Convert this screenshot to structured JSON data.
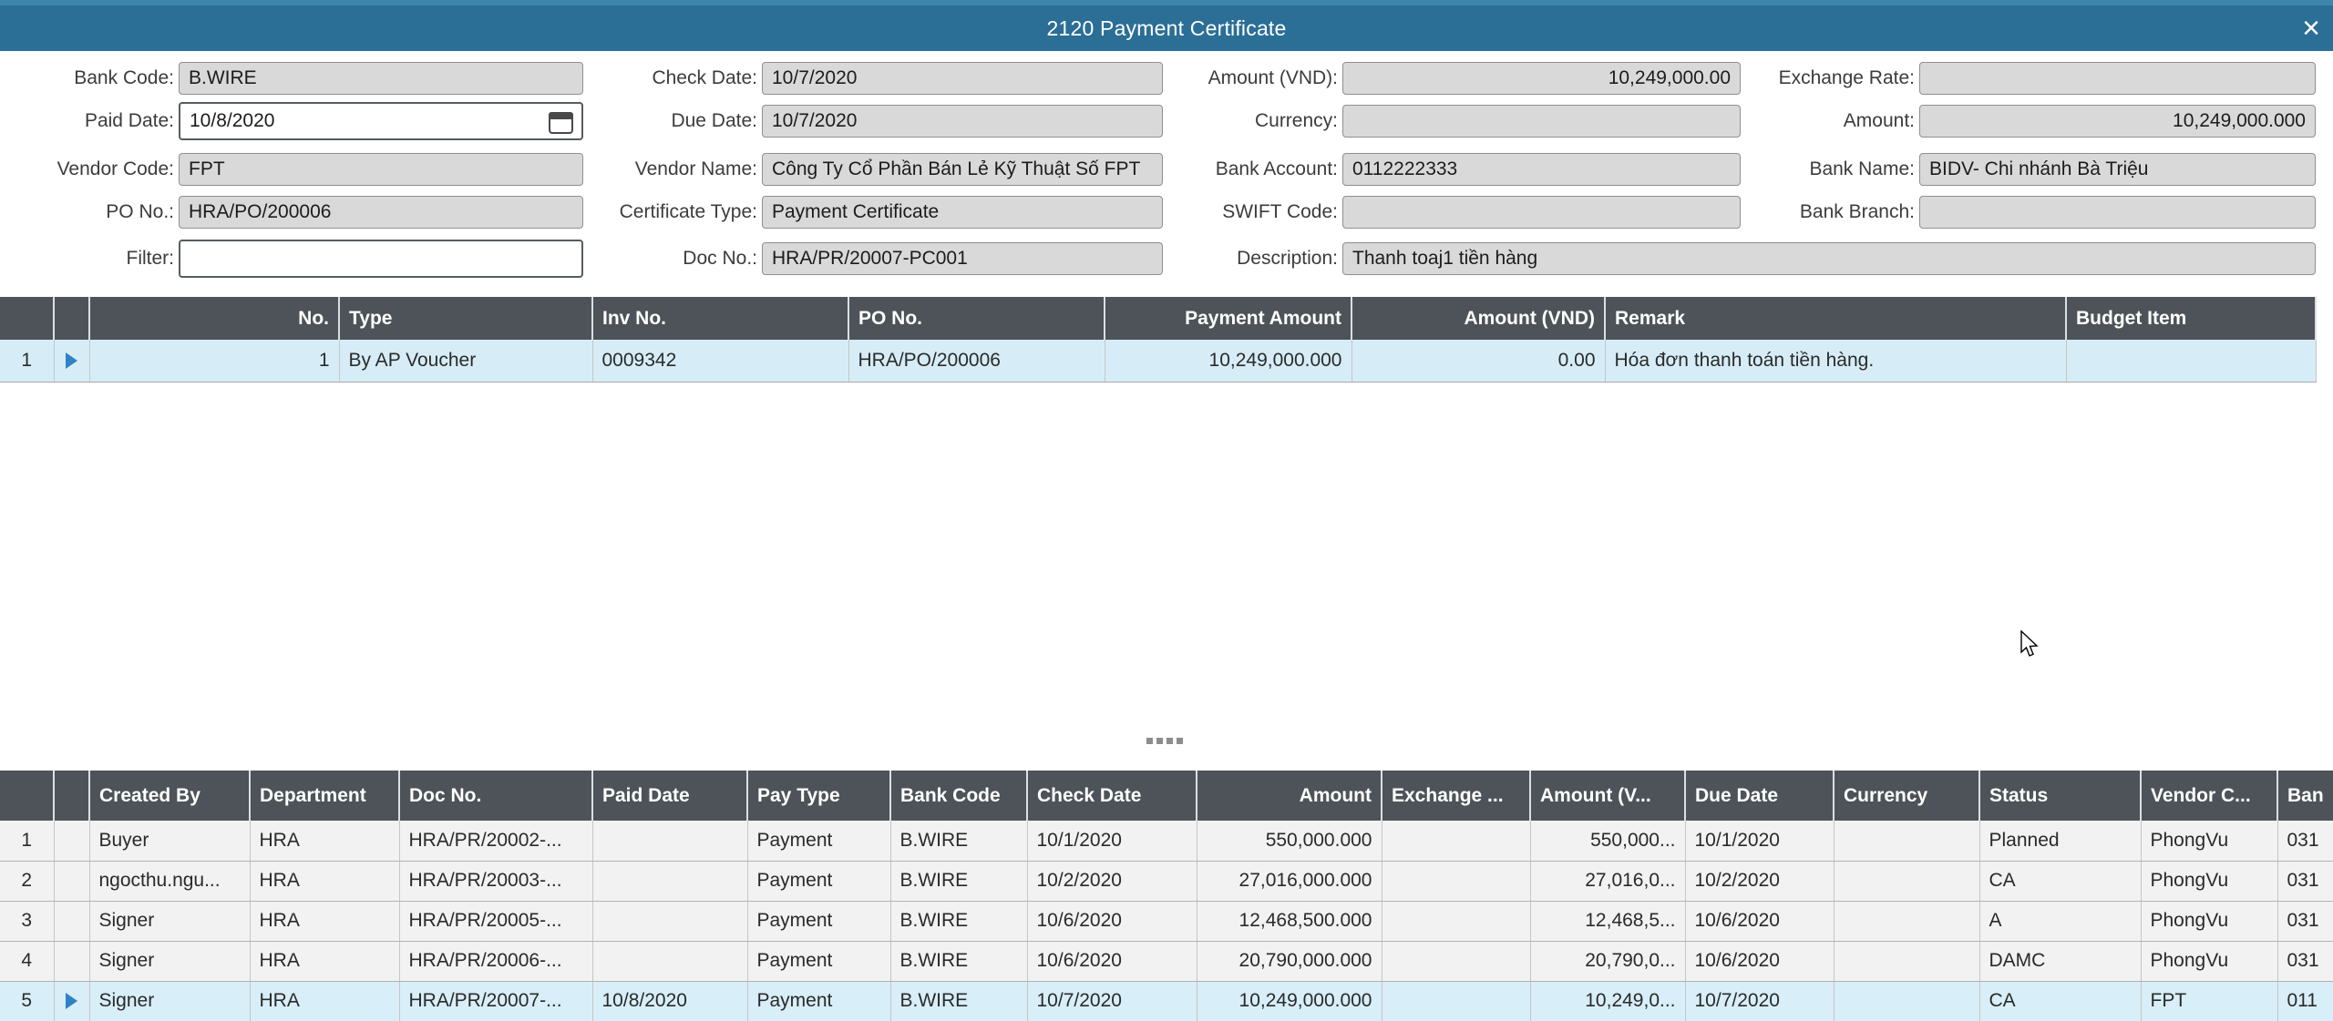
{
  "titlebar": {
    "title": "2120 Payment Certificate",
    "close": "×"
  },
  "form": {
    "bank_code": {
      "label": "Bank Code:",
      "value": "B.WIRE"
    },
    "check_date": {
      "label": "Check Date:",
      "value": "10/7/2020"
    },
    "amount_vnd": {
      "label": "Amount (VND):",
      "value": "10,249,000.00"
    },
    "exchange_rate": {
      "label": "Exchange Rate:",
      "value": ""
    },
    "paid_date": {
      "label": "Paid Date:",
      "value": "10/8/2020"
    },
    "due_date": {
      "label": "Due Date:",
      "value": "10/7/2020"
    },
    "currency": {
      "label": "Currency:",
      "value": ""
    },
    "amount": {
      "label": "Amount:",
      "value": "10,249,000.000"
    },
    "vendor_code": {
      "label": "Vendor Code:",
      "value": "FPT"
    },
    "vendor_name": {
      "label": "Vendor Name:",
      "value": "Công Ty Cổ Phần Bán Lẻ Kỹ Thuật Số FPT"
    },
    "bank_account": {
      "label": "Bank Account:",
      "value": "0112222333"
    },
    "bank_name": {
      "label": "Bank Name:",
      "value": "BIDV- Chi nhánh Bà Triệu"
    },
    "po_no": {
      "label": "PO No.:",
      "value": "HRA/PO/200006"
    },
    "certificate_type": {
      "label": "Certificate Type:",
      "value": "Payment Certificate"
    },
    "swift_code": {
      "label": "SWIFT Code:",
      "value": ""
    },
    "bank_branch": {
      "label": "Bank Branch:",
      "value": ""
    },
    "filter": {
      "label": "Filter:",
      "value": ""
    },
    "doc_no": {
      "label": "Doc No.:",
      "value": "HRA/PR/20007-PC001"
    },
    "description": {
      "label": "Description:",
      "value": "Thanh toaj1 tiền hàng"
    }
  },
  "detail_table": {
    "headers": [
      "No.",
      "Type",
      "Inv No.",
      "PO No.",
      "Payment Amount",
      "Amount (VND)",
      "Remark",
      "Budget Item"
    ],
    "rows": [
      {
        "num": "1",
        "selected": true,
        "cells": [
          "1",
          "By AP Voucher",
          "0009342",
          "HRA/PO/200006",
          "10,249,000.000",
          "0.00",
          "Hóa đơn thanh toán tiền hàng.",
          ""
        ]
      }
    ]
  },
  "list_table": {
    "headers": [
      "Created By",
      "Department",
      "Doc No.",
      "Paid Date",
      "Pay Type",
      "Bank Code",
      "Check Date",
      "Amount",
      "Exchange ...",
      "Amount (V...",
      "Due Date",
      "Currency",
      "Status",
      "Vendor C...",
      "Ban"
    ],
    "rows": [
      {
        "num": "1",
        "selected": false,
        "cells": [
          "Buyer",
          "HRA",
          "HRA/PR/20002-...",
          "",
          "Payment",
          "B.WIRE",
          "10/1/2020",
          "550,000.000",
          "",
          "550,000...",
          "10/1/2020",
          "",
          "Planned",
          "PhongVu",
          "031"
        ]
      },
      {
        "num": "2",
        "selected": false,
        "cells": [
          "ngocthu.ngu...",
          "HRA",
          "HRA/PR/20003-...",
          "",
          "Payment",
          "B.WIRE",
          "10/2/2020",
          "27,016,000.000",
          "",
          "27,016,0...",
          "10/2/2020",
          "",
          "CA",
          "PhongVu",
          "031"
        ]
      },
      {
        "num": "3",
        "selected": false,
        "cells": [
          "Signer",
          "HRA",
          "HRA/PR/20005-...",
          "",
          "Payment",
          "B.WIRE",
          "10/6/2020",
          "12,468,500.000",
          "",
          "12,468,5...",
          "10/6/2020",
          "",
          "A",
          "PhongVu",
          "031"
        ]
      },
      {
        "num": "4",
        "selected": false,
        "cells": [
          "Signer",
          "HRA",
          "HRA/PR/20006-...",
          "",
          "Payment",
          "B.WIRE",
          "10/6/2020",
          "20,790,000.000",
          "",
          "20,790,0...",
          "10/6/2020",
          "",
          "DAMC",
          "PhongVu",
          "031"
        ]
      },
      {
        "num": "5",
        "selected": true,
        "cells": [
          "Signer",
          "HRA",
          "HRA/PR/20007-...",
          "10/8/2020",
          "Payment",
          "B.WIRE",
          "10/7/2020",
          "10,249,000.000",
          "",
          "10,249,0...",
          "10/7/2020",
          "",
          "CA",
          "FPT",
          "011"
        ]
      }
    ]
  },
  "colors": {
    "titlebar": "#2b6e96",
    "grid_header": "#4d5359",
    "selected_row": "#d6edf7",
    "readonly_bg": "#d9d9d9"
  }
}
